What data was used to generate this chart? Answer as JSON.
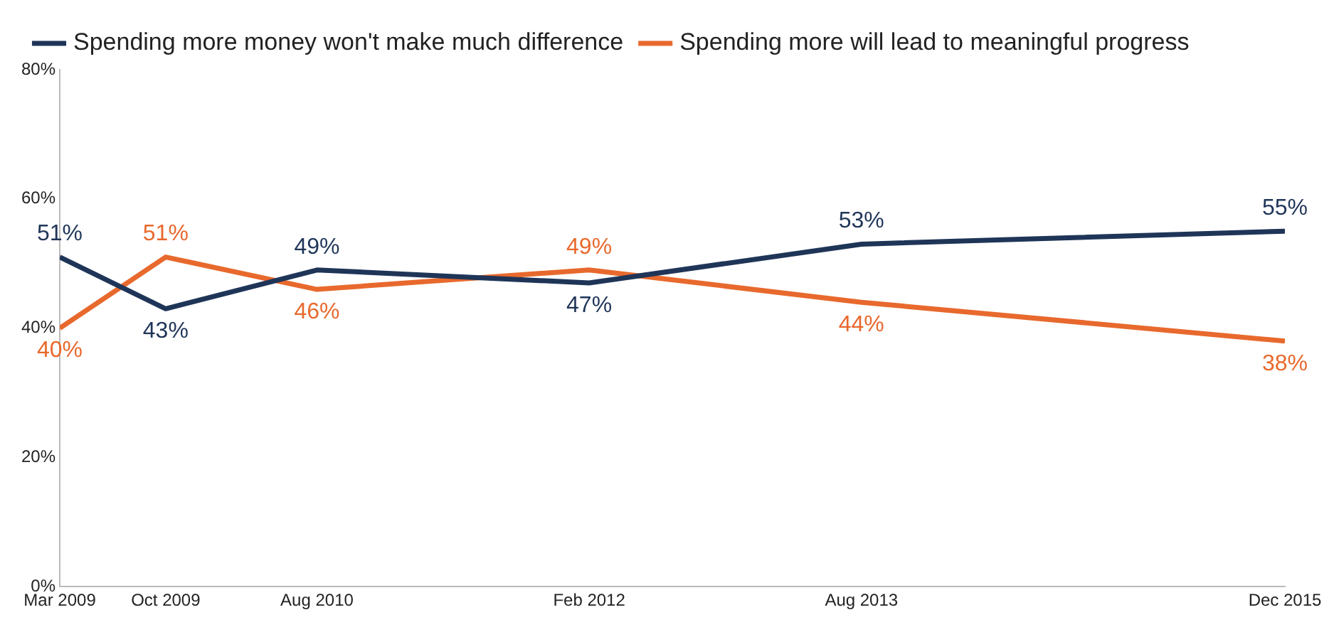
{
  "chart_data": {
    "type": "line",
    "x": [
      "2009-03",
      "2009-10",
      "2010-08",
      "2012-02",
      "2013-08",
      "2015-12"
    ],
    "series": [
      {
        "name": "Spending more money won't make much difference",
        "color": "#1f3558",
        "values": [
          51,
          43,
          49,
          47,
          53,
          55
        ],
        "value_labels": [
          "51%",
          "43%",
          "49%",
          "47%",
          "53%",
          "55%"
        ]
      },
      {
        "name": "Spending more will lead to meaningful progress",
        "color": "#e8692d",
        "values": [
          40,
          51,
          46,
          49,
          44,
          38
        ],
        "value_labels": [
          "40%",
          "51%",
          "46%",
          "49%",
          "44%",
          "38%"
        ]
      }
    ],
    "xlim": [
      "2009-03",
      "2015-12"
    ],
    "xticks": [
      {
        "value": "2009-03",
        "label": "Mar 2009"
      },
      {
        "value": "2009-10",
        "label": "Oct 2009"
      },
      {
        "value": "2010-08",
        "label": "Aug 2010"
      },
      {
        "value": "2012-02",
        "label": "Feb 2012"
      },
      {
        "value": "2013-08",
        "label": "Aug 2013"
      },
      {
        "value": "2015-12",
        "label": "Dec 2015"
      }
    ],
    "ylim": [
      0,
      80
    ],
    "yticks": [
      {
        "value": 0,
        "label": "0%"
      },
      {
        "value": 20,
        "label": "20%"
      },
      {
        "value": 40,
        "label": "40%"
      },
      {
        "value": 60,
        "label": "60%"
      },
      {
        "value": 80,
        "label": "80%"
      }
    ],
    "grid": false,
    "legend": "top",
    "marker": "none",
    "line_style": "solid"
  }
}
